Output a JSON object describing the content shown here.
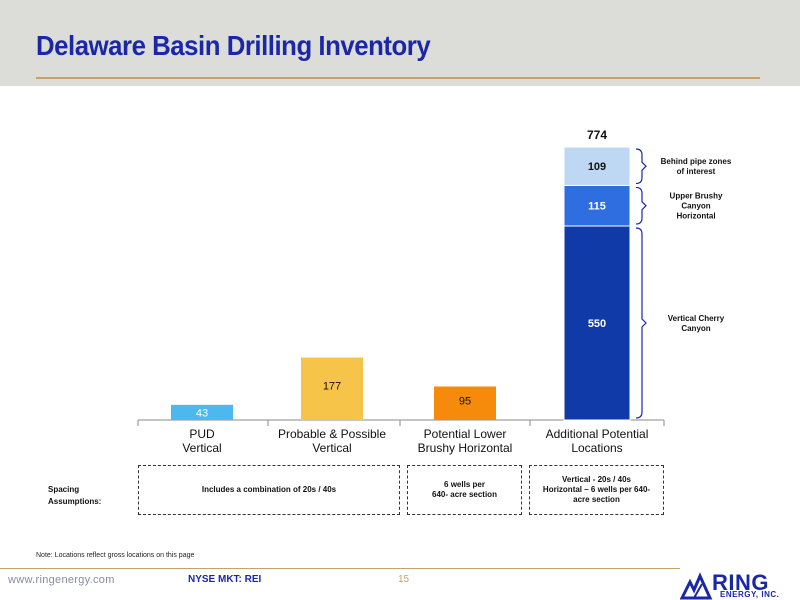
{
  "title": "Delaware Basin Drilling Inventory",
  "chart_data": {
    "type": "bar",
    "stacked": true,
    "categories": [
      "PUD Vertical",
      "Probable & Possible Vertical",
      "Potential Lower Brushy Horizontal",
      "Additional Potential Locations"
    ],
    "category_lines": [
      [
        "PUD",
        "Vertical"
      ],
      [
        "Probable & Possible",
        "Vertical"
      ],
      [
        "Potential Lower",
        "Brushy Horizontal"
      ],
      [
        "Additional Potential",
        "Locations"
      ]
    ],
    "bars": [
      {
        "category": "PUD Vertical",
        "segments": [
          {
            "value": 43,
            "label": "43",
            "color": "#4db8ee"
          }
        ]
      },
      {
        "category": "Probable & Possible Vertical",
        "segments": [
          {
            "value": 177,
            "label": "177",
            "color": "#f7c44a"
          }
        ]
      },
      {
        "category": "Potential Lower Brushy Horizontal",
        "segments": [
          {
            "value": 95,
            "label": "95",
            "color": "#f58a0b"
          }
        ]
      },
      {
        "category": "Additional Potential Locations",
        "total": 774,
        "total_label": "774",
        "segments": [
          {
            "value": 550,
            "label": "550",
            "color": "#0f3aa8",
            "annotation": [
              "Vertical Cherry",
              "Canyon"
            ]
          },
          {
            "value": 115,
            "label": "115",
            "color": "#2f6ee0",
            "annotation": [
              "Upper Brushy",
              "Canyon",
              "Horizontal"
            ]
          },
          {
            "value": 109,
            "label": "109",
            "color": "#bed8f3",
            "annotation": [
              "Behind pipe zones",
              "of interest"
            ]
          }
        ]
      }
    ],
    "ylim": [
      0,
      774
    ],
    "grid": false,
    "legend": "none"
  },
  "spacing": {
    "label_line1": "Spacing",
    "label_line2": "Assumptions:",
    "box1": "Includes a combination of 20s / 40s",
    "box2_line1": "6 wells per",
    "box2_line2": "640- acre section",
    "box3_line1": "Vertical - 20s / 40s",
    "box3_line2": "Horizontal – 6 wells per 640-",
    "box3_line3": "acre section"
  },
  "note": "Note: Locations reflect gross locations on this page",
  "footer": {
    "url": "www.ringenergy.com",
    "ticker": "NYSE MKT: REI",
    "page": "15",
    "logo_word": "RING",
    "logo_sub": "ENERGY, INC."
  },
  "colors": {
    "title": "#1a28a8",
    "rule": "#c8a06a",
    "header_bg": "#dcdcd9"
  }
}
